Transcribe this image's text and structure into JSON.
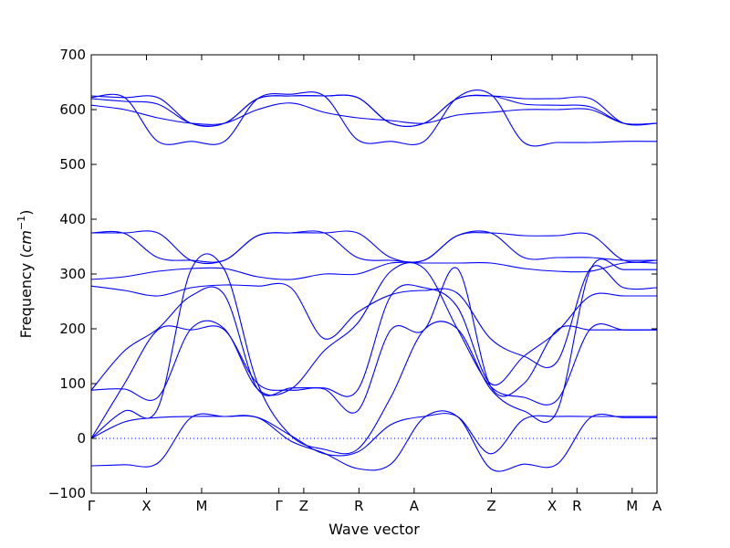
{
  "chart_data": {
    "type": "line",
    "title": "",
    "xlabel": "Wave vector",
    "ylabel_prefix": "Frequency (",
    "ylabel_unit_base": "cm",
    "ylabel_unit_exp": "−1",
    "ylabel_suffix": ")",
    "ylim": [
      -100,
      700
    ],
    "yticks": [
      -100,
      0,
      100,
      200,
      300,
      400,
      500,
      600,
      700
    ],
    "grid": false,
    "legend": "none",
    "line_color": "#0000ff",
    "zero_line": 0,
    "kpoints": [
      {
        "label": "Γ",
        "x": 0.0
      },
      {
        "label": "X",
        "x": 1.0
      },
      {
        "label": "M",
        "x": 2.0
      },
      {
        "label": "Γ",
        "x": 3.4
      },
      {
        "label": "Z",
        "x": 3.85
      },
      {
        "label": "R",
        "x": 4.85
      },
      {
        "label": "A",
        "x": 5.85
      },
      {
        "label": "Z",
        "x": 7.25
      },
      {
        "label": "X",
        "x": 8.35
      },
      {
        "label": "R",
        "x": 8.8
      },
      {
        "label": "M",
        "x": 9.8
      },
      {
        "label": "A",
        "x": 10.25
      }
    ],
    "series": [
      {
        "values": [
          -50,
          -48,
          -45,
          38,
          40,
          38,
          -5,
          -27,
          -55,
          -47,
          38,
          40,
          -55,
          -47,
          -47,
          38,
          38,
          38
        ]
      },
      {
        "values": [
          0,
          30,
          38,
          40,
          40,
          38,
          5,
          -28,
          -25,
          25,
          40,
          40,
          -28,
          35,
          40,
          40,
          40,
          40
        ]
      },
      {
        "values": [
          0,
          50,
          55,
          308,
          308,
          100,
          5,
          -20,
          -20,
          75,
          198,
          200,
          90,
          50,
          50,
          308,
          308,
          308
        ]
      },
      {
        "values": [
          88,
          90,
          75,
          200,
          200,
          90,
          90,
          160,
          210,
          305,
          310,
          200,
          95,
          75,
          70,
          200,
          198,
          198
        ]
      },
      {
        "values": [
          88,
          160,
          200,
          260,
          262,
          90,
          92,
          92,
          88,
          260,
          275,
          240,
          100,
          150,
          195,
          260,
          260,
          260
        ]
      },
      {
        "values": [
          0,
          100,
          198,
          198,
          198,
          100,
          88,
          90,
          50,
          198,
          198,
          310,
          95,
          100,
          198,
          198,
          198,
          198
        ]
      },
      {
        "values": [
          278,
          270,
          260,
          275,
          280,
          278,
          275,
          182,
          230,
          262,
          270,
          265,
          182,
          150,
          140,
          310,
          275,
          275
        ]
      },
      {
        "values": [
          290,
          295,
          305,
          310,
          310,
          295,
          290,
          300,
          300,
          320,
          320,
          320,
          320,
          310,
          305,
          305,
          320,
          320
        ]
      },
      {
        "values": [
          375,
          374,
          330,
          325,
          325,
          370,
          375,
          375,
          330,
          325,
          325,
          370,
          375,
          330,
          330,
          330,
          325,
          325
        ]
      },
      {
        "values": [
          375,
          375,
          375,
          325,
          325,
          370,
          375,
          375,
          375,
          330,
          325,
          370,
          375,
          370,
          370,
          372,
          325,
          325
        ]
      },
      {
        "values": [
          608,
          600,
          585,
          575,
          575,
          600,
          612,
          595,
          585,
          580,
          575,
          590,
          595,
          600,
          600,
          600,
          575,
          575
        ]
      },
      {
        "values": [
          625,
          622,
          622,
          575,
          575,
          620,
          625,
          625,
          622,
          575,
          575,
          620,
          625,
          610,
          608,
          605,
          575,
          575
        ]
      },
      {
        "values": [
          620,
          615,
          610,
          575,
          575,
          620,
          625,
          625,
          622,
          575,
          575,
          620,
          625,
          620,
          620,
          620,
          575,
          575
        ]
      },
      {
        "values": [
          622,
          622,
          542,
          542,
          542,
          620,
          628,
          625,
          545,
          542,
          542,
          622,
          628,
          540,
          540,
          540,
          542,
          542
        ]
      }
    ]
  }
}
